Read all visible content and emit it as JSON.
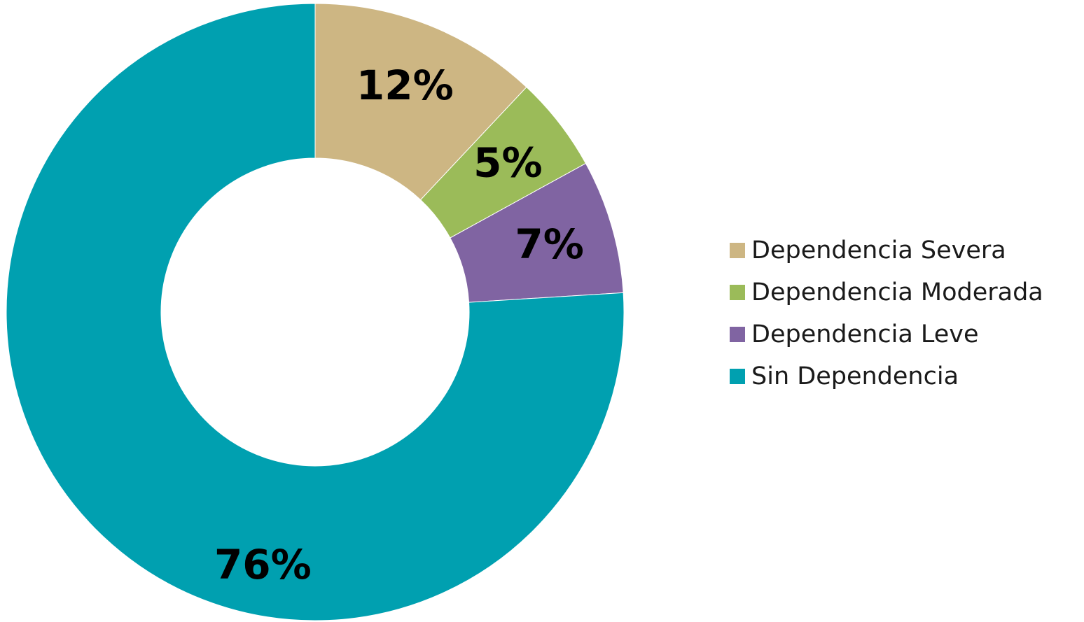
{
  "chart_data": {
    "type": "pie",
    "variant": "donut",
    "title": "",
    "legend_position": "right",
    "slices": [
      {
        "name": "Dependencia Severa",
        "value": 12,
        "label": "12%",
        "color": "#CDB683"
      },
      {
        "name": "Dependencia Moderada",
        "value": 5,
        "label": "5%",
        "color": "#9BBB59"
      },
      {
        "name": "Dependencia Leve",
        "value": 7,
        "label": "7%",
        "color": "#8064A2"
      },
      {
        "name": "Sin Dependencia",
        "value": 76,
        "label": "76%",
        "color": "#00A0B0"
      }
    ]
  }
}
